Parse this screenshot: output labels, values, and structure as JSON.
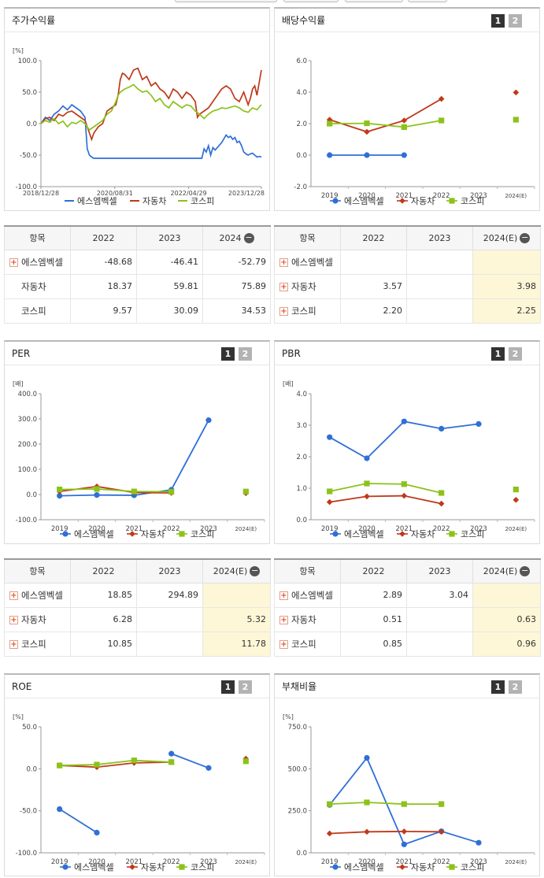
{
  "stock_return": {
    "title": "주가수익률",
    "chart_data": {
      "type": "line",
      "unit": "[%]",
      "ylim": [
        -100,
        100
      ],
      "yticks": [
        "100.0",
        "50.0",
        "0.0",
        "-50.0",
        "-100.0"
      ],
      "xticks": [
        "2018/12/28",
        "2020/08/31",
        "2022/04/29",
        "2023/12/28"
      ],
      "xlim": [
        0,
        100
      ],
      "series": [
        {
          "name": "에스엠벡셀",
          "color": "#2f6fd6",
          "x": [
            0,
            2,
            4,
            6,
            8,
            10,
            12,
            14,
            16,
            18,
            20,
            21,
            22,
            23,
            24,
            25,
            30,
            35,
            40,
            45,
            50,
            55,
            60,
            65,
            70,
            72,
            73,
            74,
            75,
            76,
            77,
            78,
            79,
            80,
            82,
            84,
            85,
            86,
            87,
            88,
            89,
            90,
            91,
            92,
            93,
            94,
            95,
            96,
            97,
            98,
            99,
            100
          ],
          "y": [
            0,
            10,
            5,
            15,
            20,
            28,
            22,
            30,
            25,
            20,
            10,
            -40,
            -50,
            -53,
            -55,
            -55,
            -55,
            -55,
            -55,
            -55,
            -55,
            -55,
            -55,
            -55,
            -55,
            -55,
            -55,
            -40,
            -45,
            -35,
            -50,
            -38,
            -42,
            -38,
            -30,
            -18,
            -22,
            -20,
            -25,
            -22,
            -30,
            -28,
            -35,
            -45,
            -48,
            -50,
            -48,
            -47,
            -50,
            -53,
            -52,
            -53
          ]
        },
        {
          "name": "자동차",
          "color": "#c0391b",
          "x": [
            0,
            2,
            4,
            6,
            8,
            10,
            12,
            14,
            16,
            18,
            20,
            21,
            22,
            23,
            24,
            25,
            26,
            28,
            30,
            32,
            34,
            35,
            36,
            37,
            38,
            40,
            42,
            44,
            46,
            48,
            50,
            52,
            54,
            56,
            58,
            60,
            62,
            64,
            66,
            68,
            70,
            71,
            72,
            74,
            76,
            78,
            80,
            82,
            84,
            86,
            88,
            90,
            92,
            94,
            95,
            96,
            97,
            98,
            99,
            100
          ],
          "y": [
            0,
            8,
            10,
            5,
            15,
            12,
            18,
            20,
            15,
            10,
            5,
            -5,
            -15,
            -25,
            -15,
            -10,
            -5,
            0,
            20,
            25,
            30,
            45,
            70,
            80,
            78,
            70,
            85,
            88,
            70,
            75,
            60,
            65,
            55,
            50,
            40,
            55,
            50,
            40,
            50,
            45,
            35,
            10,
            15,
            20,
            25,
            35,
            45,
            55,
            60,
            55,
            40,
            35,
            50,
            30,
            40,
            55,
            60,
            45,
            65,
            85
          ]
        },
        {
          "name": "코스피",
          "color": "#8cc21a",
          "x": [
            0,
            2,
            4,
            6,
            8,
            10,
            12,
            14,
            16,
            18,
            20,
            22,
            24,
            26,
            28,
            30,
            32,
            34,
            35,
            36,
            38,
            40,
            42,
            44,
            46,
            48,
            50,
            52,
            54,
            56,
            58,
            60,
            62,
            64,
            66,
            68,
            70,
            72,
            74,
            76,
            78,
            80,
            82,
            84,
            86,
            88,
            90,
            92,
            94,
            96,
            98,
            100
          ],
          "y": [
            0,
            5,
            2,
            8,
            0,
            4,
            -5,
            2,
            0,
            5,
            0,
            -10,
            -5,
            0,
            5,
            15,
            20,
            35,
            45,
            50,
            55,
            58,
            62,
            55,
            50,
            52,
            45,
            35,
            40,
            30,
            25,
            35,
            30,
            25,
            30,
            28,
            20,
            15,
            8,
            15,
            20,
            22,
            25,
            24,
            26,
            28,
            25,
            20,
            18,
            25,
            22,
            30
          ]
        }
      ]
    },
    "table": {
      "header_label": "항목",
      "years": [
        "2022",
        "2023",
        "2024"
      ],
      "rows": [
        {
          "name": "에스엠벡셀",
          "values": [
            "-48.68",
            "-46.41",
            "-52.79"
          ]
        },
        {
          "name": "자동차",
          "values": [
            "18.37",
            "59.81",
            "75.89"
          ]
        },
        {
          "name": "코스피",
          "values": [
            "9.57",
            "30.09",
            "34.53"
          ]
        }
      ]
    }
  },
  "dividend": {
    "title": "배당수익률",
    "chart_data": {
      "type": "line",
      "ylim": [
        -2,
        6
      ],
      "yticks": [
        "6.0",
        "4.0",
        "2.0",
        "0.0",
        "-2.0"
      ],
      "categories": [
        "2019",
        "2020",
        "2021",
        "2022",
        "2023",
        "2024(E)"
      ],
      "series": [
        {
          "name": "에스엠벡셀",
          "color": "#2f6fd6",
          "values": [
            0,
            0,
            0,
            null,
            null,
            null
          ]
        },
        {
          "name": "자동차",
          "color": "#c0391b",
          "values": [
            2.25,
            1.48,
            2.2,
            3.57,
            null,
            3.98
          ]
        },
        {
          "name": "코스피",
          "color": "#8cc21a",
          "values": [
            2.0,
            2.02,
            1.78,
            2.2,
            null,
            2.25
          ]
        }
      ]
    },
    "table": {
      "header_label": "항목",
      "years": [
        "2022",
        "2023",
        "2024(E)"
      ],
      "rows": [
        {
          "name": "에스엠벡셀",
          "values": [
            "",
            "",
            ""
          ]
        },
        {
          "name": "자동차",
          "values": [
            "3.57",
            "",
            "3.98"
          ]
        },
        {
          "name": "코스피",
          "values": [
            "2.20",
            "",
            "2.25"
          ]
        }
      ]
    }
  },
  "per": {
    "title": "PER",
    "chart_data": {
      "type": "line",
      "unit": "[배]",
      "ylim": [
        -100,
        400
      ],
      "yticks": [
        "400.0",
        "300.0",
        "200.0",
        "100.0",
        "0.0",
        "-100.0"
      ],
      "categories": [
        "2019",
        "2020",
        "2021",
        "2022",
        "2023",
        "2024(E)"
      ],
      "series": [
        {
          "name": "에스엠벡셀",
          "color": "#2f6fd6",
          "values": [
            -5,
            -2,
            -3,
            18.85,
            294.89,
            null
          ]
        },
        {
          "name": "자동차",
          "color": "#c0391b",
          "values": [
            12,
            32,
            8,
            6.28,
            null,
            5.32
          ]
        },
        {
          "name": "코스피",
          "color": "#8cc21a",
          "values": [
            20,
            22,
            12,
            10.85,
            null,
            11.78
          ]
        }
      ]
    },
    "table": {
      "header_label": "항목",
      "years": [
        "2022",
        "2023",
        "2024(E)"
      ],
      "rows": [
        {
          "name": "에스엠벡셀",
          "values": [
            "18.85",
            "294.89",
            ""
          ]
        },
        {
          "name": "자동차",
          "values": [
            "6.28",
            "",
            "5.32"
          ]
        },
        {
          "name": "코스피",
          "values": [
            "10.85",
            "",
            "11.78"
          ]
        }
      ]
    }
  },
  "pbr": {
    "title": "PBR",
    "chart_data": {
      "type": "line",
      "unit": "[배]",
      "ylim": [
        0,
        4
      ],
      "yticks": [
        "4.0",
        "3.0",
        "2.0",
        "1.0",
        "0.0"
      ],
      "categories": [
        "2019",
        "2020",
        "2021",
        "2022",
        "2023",
        "2024(E)"
      ],
      "series": [
        {
          "name": "에스엠벡셀",
          "color": "#2f6fd6",
          "values": [
            2.62,
            1.95,
            3.12,
            2.89,
            3.04,
            null
          ]
        },
        {
          "name": "자동차",
          "color": "#c0391b",
          "values": [
            0.56,
            0.74,
            0.76,
            0.51,
            null,
            0.63
          ]
        },
        {
          "name": "코스피",
          "color": "#8cc21a",
          "values": [
            0.9,
            1.15,
            1.13,
            0.85,
            null,
            0.96
          ]
        }
      ]
    },
    "table": {
      "header_label": "항목",
      "years": [
        "2022",
        "2023",
        "2024(E)"
      ],
      "rows": [
        {
          "name": "에스엠벡셀",
          "values": [
            "2.89",
            "3.04",
            ""
          ]
        },
        {
          "name": "자동차",
          "values": [
            "0.51",
            "",
            "0.63"
          ]
        },
        {
          "name": "코스피",
          "values": [
            "0.85",
            "",
            "0.96"
          ]
        }
      ]
    }
  },
  "roe": {
    "title": "ROE",
    "chart_data": {
      "type": "line",
      "unit": "[%]",
      "ylim": [
        -100,
        50
      ],
      "yticks": [
        "50.0",
        "0.0",
        "-50.0",
        "-100.0"
      ],
      "categories": [
        "2019",
        "2020",
        "2021",
        "2022",
        "2023",
        "2024(E)"
      ],
      "series": [
        {
          "name": "에스엠벡셀",
          "color": "#2f6fd6",
          "values": [
            -48,
            -76,
            null,
            18,
            1,
            null
          ]
        },
        {
          "name": "자동차",
          "color": "#c0391b",
          "values": [
            4,
            2,
            7,
            8,
            null,
            12
          ]
        },
        {
          "name": "코스피",
          "color": "#8cc21a",
          "values": [
            4,
            5,
            10,
            8,
            null,
            9
          ]
        }
      ]
    }
  },
  "debt_ratio": {
    "title": "부채비율",
    "chart_data": {
      "type": "line",
      "unit": "[%]",
      "ylim": [
        0,
        750
      ],
      "yticks": [
        "750.0",
        "500.0",
        "250.0",
        "0.0"
      ],
      "categories": [
        "2019",
        "2020",
        "2021",
        "2022",
        "2023",
        "2024(E)"
      ],
      "series": [
        {
          "name": "에스엠벡셀",
          "color": "#2f6fd6",
          "values": [
            285,
            565,
            50,
            128,
            60,
            null
          ]
        },
        {
          "name": "자동차",
          "color": "#c0391b",
          "values": [
            115,
            125,
            127,
            125,
            null,
            null
          ]
        },
        {
          "name": "코스피",
          "color": "#8cc21a",
          "values": [
            290,
            300,
            290,
            290,
            null,
            null
          ]
        }
      ]
    }
  },
  "legend": [
    "에스엠벡셀",
    "자동차",
    "코스피"
  ],
  "paging": {
    "page1": "1",
    "page2": "2"
  },
  "controls": {
    "plus": "+",
    "minus": "−"
  },
  "colors": {
    "blue": "#2f6fd6",
    "red": "#c0391b",
    "green": "#8cc21a",
    "highlight": "#fdf7d7"
  }
}
